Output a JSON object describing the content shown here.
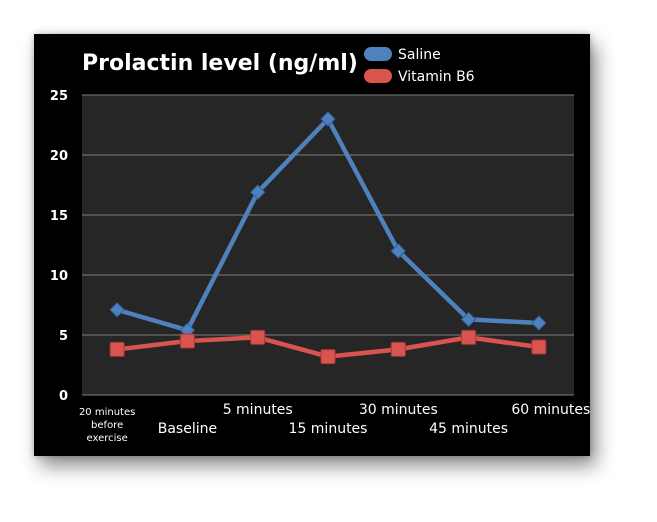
{
  "chart_data": {
    "type": "line",
    "title": "Prolactin level (ng/ml)",
    "xlabel": "",
    "ylabel": "",
    "categories": [
      "20 minutes before exercise",
      "Baseline",
      "5 minutes",
      "15 minutes",
      "30 minutes",
      "45 minutes",
      "60 minutes"
    ],
    "series": [
      {
        "name": "Saline",
        "color": "#4f81bd",
        "marker": "diamond",
        "values": [
          7.1,
          5.4,
          16.9,
          23.0,
          12.0,
          6.3,
          6.0
        ]
      },
      {
        "name": "Vitamin B6",
        "color": "#d9534f",
        "marker": "square",
        "values": [
          3.8,
          4.5,
          4.8,
          3.2,
          3.8,
          4.8,
          4.0
        ]
      }
    ],
    "ylim": [
      0,
      25
    ],
    "yticks": [
      0,
      5,
      10,
      15,
      20,
      25
    ],
    "grid": true,
    "legend": "top-right"
  },
  "colors": {
    "background": "#000000",
    "plot_area": "#262626",
    "gridline": "#7f7f7f",
    "text": "#ffffff"
  }
}
